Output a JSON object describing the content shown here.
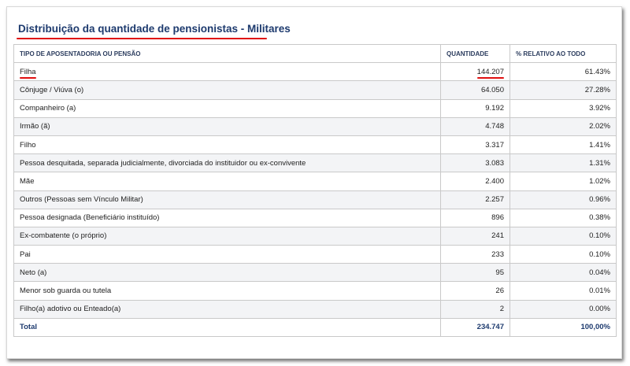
{
  "title": "Distribuição da quantidade de pensionistas - Militares",
  "table": {
    "headers": [
      "TIPO DE APOSENTADORIA OU PENSÃO",
      "QUANTIDADE",
      "% RELATIVO AO TODO"
    ],
    "rows": [
      {
        "tipo": "Filha",
        "quantidade": "144.207",
        "percent": "61.43%"
      },
      {
        "tipo": "Cônjuge / Viúva (o)",
        "quantidade": "64.050",
        "percent": "27.28%"
      },
      {
        "tipo": "Companheiro (a)",
        "quantidade": "9.192",
        "percent": "3.92%"
      },
      {
        "tipo": "Irmão (ã)",
        "quantidade": "4.748",
        "percent": "2.02%"
      },
      {
        "tipo": "Filho",
        "quantidade": "3.317",
        "percent": "1.41%"
      },
      {
        "tipo": "Pessoa desquitada, separada judicialmente, divorciada do instituidor ou ex-convivente",
        "quantidade": "3.083",
        "percent": "1.31%"
      },
      {
        "tipo": "Mãe",
        "quantidade": "2.400",
        "percent": "1.02%"
      },
      {
        "tipo": "Outros (Pessoas sem Vínculo Militar)",
        "quantidade": "2.257",
        "percent": "0.96%"
      },
      {
        "tipo": "Pessoa designada (Beneficiário instituído)",
        "quantidade": "896",
        "percent": "0.38%"
      },
      {
        "tipo": "Ex-combatente (o próprio)",
        "quantidade": "241",
        "percent": "0.10%"
      },
      {
        "tipo": "Pai",
        "quantidade": "233",
        "percent": "0.10%"
      },
      {
        "tipo": "Neto (a)",
        "quantidade": "95",
        "percent": "0.04%"
      },
      {
        "tipo": "Menor sob guarda ou tutela",
        "quantidade": "26",
        "percent": "0.01%"
      },
      {
        "tipo": "Filho(a) adotivo ou Enteado(a)",
        "quantidade": "2",
        "percent": "0.00%"
      }
    ],
    "total": {
      "label": "Total",
      "quantidade": "234.747",
      "percent": "100,00%"
    }
  },
  "colors": {
    "title": "#1d3a6e",
    "highlight": "#e01010",
    "row_alt": "#f3f4f6"
  }
}
